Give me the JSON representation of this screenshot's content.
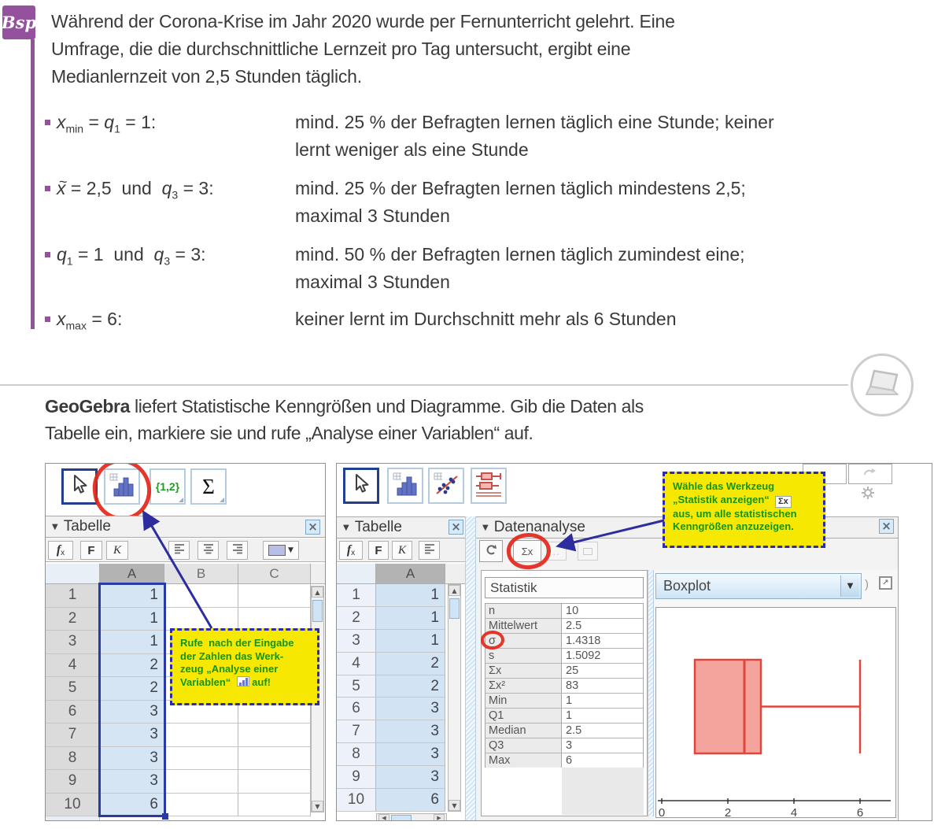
{
  "badge_label": "Bsp",
  "intro_lines": [
    "Während der Corona-Krise im Jahr 2020 wurde per Fernunterricht gelehrt. Eine",
    "Umfrage, die die durchschnittliche Lernzeit pro Tag untersucht, ergibt eine",
    "Medianlernzeit von 2,5 Stunden täglich."
  ],
  "bullets": [
    {
      "term": [
        {
          "v": "x",
          "sub": "min"
        },
        {
          "t": " = "
        },
        {
          "v": "q",
          "sub": "1"
        },
        {
          "t": " = 1:"
        }
      ],
      "desc": [
        "mind. 25 % der Befragten lernen täglich eine Stunde; keiner",
        "lernt weniger als eine Stunde"
      ]
    },
    {
      "term": [
        {
          "v": "x",
          "tilde": true
        },
        {
          "t": " = 2,5  und  "
        },
        {
          "v": "q",
          "sub": "3"
        },
        {
          "t": " = 3:"
        }
      ],
      "desc": [
        "mind. 25 % der Befragten lernen täglich mindestens 2,5;",
        "maximal 3 Stunden"
      ]
    },
    {
      "term": [
        {
          "v": "q",
          "sub": "1"
        },
        {
          "t": " = 1  und  "
        },
        {
          "v": "q",
          "sub": "3"
        },
        {
          "t": " = 3:"
        }
      ],
      "desc": [
        "mind. 50 % der Befragten lernen täglich zumindest eine;",
        "maximal 3 Stunden"
      ]
    },
    {
      "term": [
        {
          "v": "x",
          "sub": "max"
        },
        {
          "t": " = 6:"
        }
      ],
      "desc": [
        "keiner lernt im Durchschnitt mehr als 6 Stunden"
      ]
    }
  ],
  "geogebra_text": {
    "bold_lead": "GeoGebra",
    "line1_rest": " liefert Statistische Kenngrößen und Diagramme. Gib die Daten als",
    "line2": "Tabelle ein, markiere sie und rufe „Analyse einer Variablen“ auf."
  },
  "dataset": {
    "column": "A",
    "row_numbers": [
      1,
      2,
      3,
      4,
      5,
      6,
      7,
      8,
      9,
      10
    ],
    "values": [
      1,
      1,
      1,
      2,
      2,
      3,
      3,
      3,
      3,
      6
    ]
  },
  "left_shot": {
    "toolbar": {
      "list_label": "{1,2}",
      "sigma_label": "Σ"
    },
    "panel_title": "Tabelle",
    "format_bar": {
      "fx_main": "f",
      "fx_sub": "x",
      "bold": "F",
      "italic": "K"
    },
    "column_headers": [
      "A",
      "B",
      "C"
    ],
    "callout": {
      "lines": [
        "Rufe  nach der Eingabe",
        "der Zahlen das Werk-",
        "zeug „Analyse einer",
        "Variablen“"
      ],
      "suffix": "auf!",
      "chip_after_line": 3
    }
  },
  "right_shot": {
    "tabelle": {
      "panel_title": "Tabelle",
      "column_header": "A",
      "format": {
        "fx_main": "f",
        "fx_sub": "x",
        "bold": "F",
        "italic": "K"
      }
    },
    "datenanalyse": {
      "panel_title": "Datenanalyse",
      "sigma_button_label": "Σx",
      "statistik": {
        "header": "Statistik",
        "rows": [
          [
            "n",
            "10"
          ],
          [
            "Mittelwert",
            "2.5"
          ],
          [
            "σ",
            "1.4318"
          ],
          [
            "s",
            "1.5092"
          ],
          [
            "Σx",
            "25"
          ],
          [
            "Σx²",
            "83"
          ],
          [
            "Min",
            "1"
          ],
          [
            "Q1",
            "1"
          ],
          [
            "Median",
            "2.5"
          ],
          [
            "Q3",
            "3"
          ],
          [
            "Max",
            "6"
          ]
        ]
      },
      "chart_selector": "Boxplot",
      "callout": {
        "lines": [
          "Wähle das Werkzeug",
          "„Statistik anzeigen“",
          "aus, um alle statistischen",
          "Kenngrößen anzuzeigen."
        ],
        "chip_text": "Σx",
        "chip_after_line": 1
      }
    }
  },
  "chart_data": {
    "type": "boxplot",
    "title": "Boxplot",
    "orientation": "horizontal",
    "values": [
      1,
      1,
      1,
      2,
      2,
      3,
      3,
      3,
      3,
      6
    ],
    "stats": {
      "min": 1,
      "q1": 1,
      "median": 2.5,
      "q3": 3,
      "max": 6
    },
    "x_ticks": [
      0,
      2,
      4,
      6
    ],
    "xlim": [
      0,
      7.2
    ],
    "box_color": "#e2463a",
    "box_fill": "#f2948c"
  },
  "icons": {
    "collapse": "▼",
    "close": "×",
    "dropdown": "▼",
    "scroll_up": "▲",
    "scroll_down": "▼",
    "scroll_left": "◀",
    "scroll_right": "▶",
    "export_arrow": "↗",
    "cropped_paren": ")"
  },
  "colors": {
    "accent_purple": "#94519c",
    "callout_yellow": "#f6e800",
    "callout_text_green": "#159415",
    "annotation_red": "#e3261a",
    "annotation_blue": "#2d2d9f",
    "selection_blue": "#2a3ba6"
  }
}
